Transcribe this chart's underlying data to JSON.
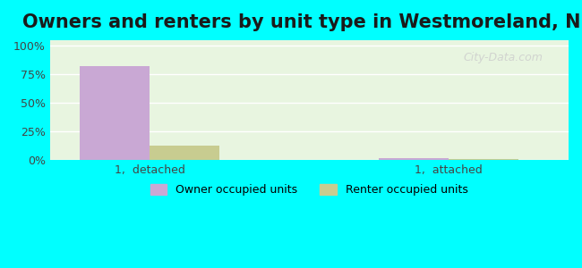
{
  "title": "Owners and renters by unit type in Westmoreland, NH",
  "categories": [
    "1,  detached",
    "1,  attached"
  ],
  "owner_values": [
    82,
    2
  ],
  "renter_values": [
    13,
    1
  ],
  "owner_color": "#c9a8d4",
  "renter_color": "#c8cc90",
  "yticks": [
    0,
    25,
    50,
    75,
    100
  ],
  "ytick_labels": [
    "0%",
    "25%",
    "50%",
    "75%",
    "100%"
  ],
  "ylim": [
    0,
    105
  ],
  "bar_width": 0.35,
  "legend_owner": "Owner occupied units",
  "legend_renter": "Renter occupied units",
  "title_fontsize": 15,
  "watermark": "City-Data.com",
  "bg_color_top": "#e8f5e2",
  "bg_color_bottom": "#f0faf0",
  "outer_bg": "#00ffff"
}
